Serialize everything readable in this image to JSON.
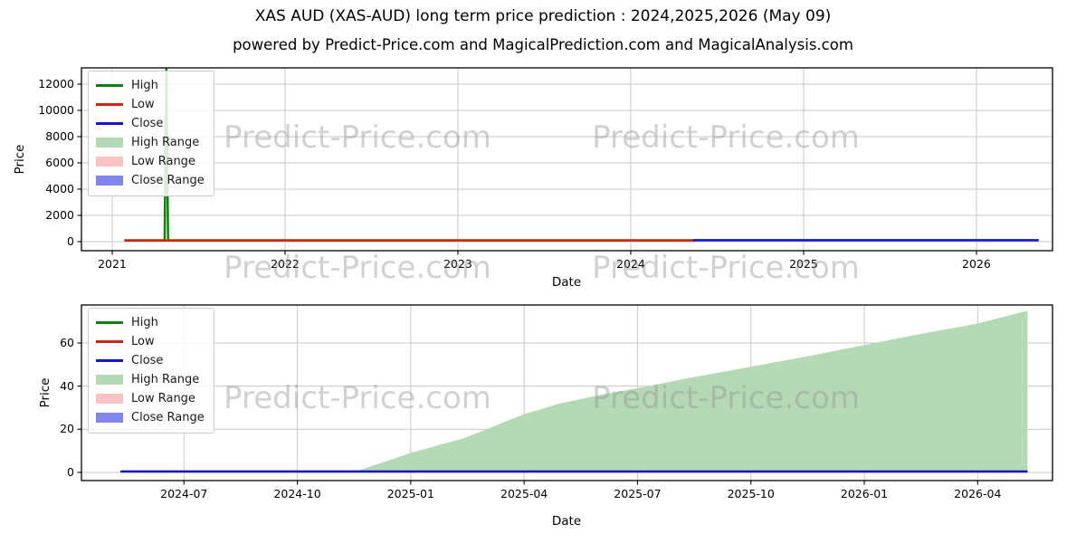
{
  "figure": {
    "title": "XAS AUD (XAS-AUD) long term price prediction : 2024,2025,2026 (May 09)",
    "subtitle": "powered by Predict-Price.com and MagicalPrediction.com and MagicalAnalysis.com",
    "watermark": "Predict-Price.com",
    "background": "#ffffff"
  },
  "colors": {
    "high": "#0f7f0f",
    "low": "#cd2613",
    "close": "#1616c8",
    "high_range": "#b5d9b5",
    "low_range": "#f8c3c3",
    "close_range": "#8286ec",
    "grid": "#c7c7c7",
    "axis": "#000000"
  },
  "chart_data": [
    {
      "type": "line",
      "name": "long-term-history-and-prediction",
      "xlabel": "Date",
      "ylabel": "Price",
      "grid": true,
      "legend_position": "upper left",
      "xlim": [
        2020.822,
        2026.44
      ],
      "ylim": [
        -690,
        13240
      ],
      "x_ticks": [
        {
          "v": 2021,
          "label": "2021"
        },
        {
          "v": 2022,
          "label": "2022"
        },
        {
          "v": 2023,
          "label": "2023"
        },
        {
          "v": 2024,
          "label": "2024"
        },
        {
          "v": 2025,
          "label": "2025"
        },
        {
          "v": 2026,
          "label": "2026"
        }
      ],
      "y_ticks": [
        {
          "v": 0,
          "label": "0"
        },
        {
          "v": 2000,
          "label": "2000"
        },
        {
          "v": 4000,
          "label": "4000"
        },
        {
          "v": 6000,
          "label": "6000"
        },
        {
          "v": 8000,
          "label": "8000"
        },
        {
          "v": 10000,
          "label": "10000"
        },
        {
          "v": 12000,
          "label": "12000"
        }
      ],
      "legend": [
        {
          "label": "High",
          "swatch": "line",
          "color": "high"
        },
        {
          "label": "Low",
          "swatch": "line",
          "color": "low"
        },
        {
          "label": "Close",
          "swatch": "line",
          "color": "close"
        },
        {
          "label": "High Range",
          "swatch": "patch",
          "color": "high_range"
        },
        {
          "label": "Low Range",
          "swatch": "patch",
          "color": "low_range"
        },
        {
          "label": "Close Range",
          "swatch": "patch",
          "color": "close_range"
        }
      ],
      "series": [
        {
          "name": "High Range",
          "type": "area",
          "color": "high_range",
          "points": [
            [
              2024.36,
              150
            ],
            [
              2026.36,
              150
            ]
          ]
        },
        {
          "name": "Low Range",
          "type": "area",
          "color": "low_range",
          "points": [
            [
              2024.36,
              100
            ],
            [
              2026.36,
              100
            ]
          ]
        },
        {
          "name": "Close Range",
          "type": "area",
          "color": "close_range",
          "points": [
            [
              2024.36,
              150
            ],
            [
              2026.36,
              150
            ]
          ]
        },
        {
          "name": "High",
          "type": "line",
          "color": "high",
          "width": 2.5,
          "points": [
            [
              2021.07,
              100
            ],
            [
              2021.303,
              100
            ],
            [
              2021.313,
              13240
            ],
            [
              2021.323,
              100
            ],
            [
              2024.36,
              100
            ]
          ]
        },
        {
          "name": "Low",
          "type": "line",
          "color": "low",
          "width": 2.5,
          "points": [
            [
              2021.07,
              90
            ],
            [
              2024.37,
              90
            ]
          ]
        },
        {
          "name": "Close",
          "type": "line",
          "color": "close",
          "width": 2.5,
          "points": [
            [
              2024.36,
              110
            ],
            [
              2026.36,
              110
            ]
          ]
        }
      ]
    },
    {
      "type": "line",
      "name": "prediction-zoom-2024-2026",
      "xlabel": "Date",
      "ylabel": "Price",
      "grid": true,
      "legend_position": "upper left",
      "xlim": [
        2024.274,
        2026.415
      ],
      "ylim": [
        -3.8,
        77.6
      ],
      "x_ticks": [
        {
          "v": 2024.5,
          "label": "2024-07"
        },
        {
          "v": 2024.75,
          "label": "2024-10"
        },
        {
          "v": 2025.0,
          "label": "2025-01"
        },
        {
          "v": 2025.25,
          "label": "2025-04"
        },
        {
          "v": 2025.5,
          "label": "2025-07"
        },
        {
          "v": 2025.75,
          "label": "2025-10"
        },
        {
          "v": 2026.0,
          "label": "2026-01"
        },
        {
          "v": 2026.25,
          "label": "2026-04"
        }
      ],
      "y_ticks": [
        {
          "v": 0,
          "label": "0"
        },
        {
          "v": 20,
          "label": "20"
        },
        {
          "v": 40,
          "label": "40"
        },
        {
          "v": 60,
          "label": "60"
        }
      ],
      "legend": [
        {
          "label": "High",
          "swatch": "line",
          "color": "high"
        },
        {
          "label": "Low",
          "swatch": "line",
          "color": "low"
        },
        {
          "label": "Close",
          "swatch": "line",
          "color": "close"
        },
        {
          "label": "High Range",
          "swatch": "patch",
          "color": "high_range"
        },
        {
          "label": "Low Range",
          "swatch": "patch",
          "color": "low_range"
        },
        {
          "label": "Close Range",
          "swatch": "patch",
          "color": "close_range"
        }
      ],
      "series": [
        {
          "name": "High Range",
          "type": "area",
          "color": "high_range",
          "points": [
            [
              2024.36,
              0
            ],
            [
              2024.7,
              0
            ],
            [
              2024.88,
              0.5
            ],
            [
              2025.0,
              9
            ],
            [
              2025.12,
              16
            ],
            [
              2025.25,
              27
            ],
            [
              2025.33,
              32
            ],
            [
              2025.42,
              36
            ],
            [
              2025.5,
              39
            ],
            [
              2025.62,
              44
            ],
            [
              2025.75,
              49
            ],
            [
              2025.88,
              54
            ],
            [
              2026.0,
              59
            ],
            [
              2026.12,
              64
            ],
            [
              2026.25,
              69
            ],
            [
              2026.36,
              75
            ]
          ]
        },
        {
          "name": "Low Range",
          "type": "area",
          "color": "low_range",
          "points": [
            [
              2024.36,
              0.5
            ],
            [
              2026.36,
              0.5
            ]
          ]
        },
        {
          "name": "Close Range",
          "type": "area",
          "color": "close_range",
          "points": [
            [
              2024.36,
              0.9
            ],
            [
              2026.36,
              0.9
            ]
          ]
        },
        {
          "name": "Close",
          "type": "line",
          "color": "close",
          "width": 2.5,
          "points": [
            [
              2024.36,
              0.4
            ],
            [
              2026.36,
              0.4
            ]
          ]
        }
      ]
    }
  ]
}
